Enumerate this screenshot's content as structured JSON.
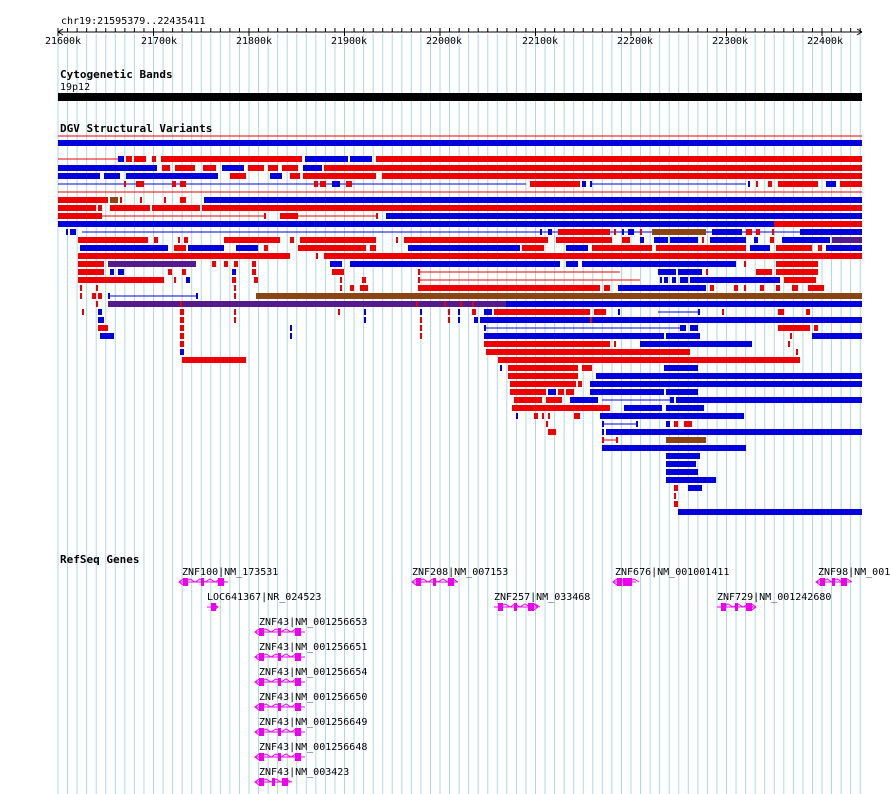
{
  "ruler": {
    "label": "chr19:21595379..22435411",
    "ticks": [
      "21600k",
      "21700k",
      "21800k",
      "21900k",
      "22000k",
      "22100k",
      "22200k",
      "22300k",
      "22400k"
    ]
  },
  "tracks": {
    "cytoband": {
      "title": "Cytogenetic Bands",
      "band": "19p12"
    },
    "dgv": {
      "title": "DGV Structural Variants"
    },
    "refseq": {
      "title": "RefSeq Genes"
    }
  },
  "genes": [
    {
      "label": "ZNF100|NM_173531"
    },
    {
      "label": "LOC641367|NR_024523"
    },
    {
      "label": "ZNF43|NM_001256653"
    },
    {
      "label": "ZNF43|NM_001256651"
    },
    {
      "label": "ZNF43|NM_001256654"
    },
    {
      "label": "ZNF43|NM_001256650"
    },
    {
      "label": "ZNF43|NM_001256649"
    },
    {
      "label": "ZNF43|NM_001256648"
    },
    {
      "label": "ZNF43|NM_003423"
    },
    {
      "label": "ZNF208|NM_007153"
    },
    {
      "label": "ZNF257|NM_033468"
    },
    {
      "label": "ZNF676|NM_001001411"
    },
    {
      "label": "ZNF729|NM_001242680"
    },
    {
      "label": "ZNF98|NM_001"
    }
  ],
  "colors": {
    "gain": "#ee0000",
    "loss": "#0000dd",
    "both": "#8b4513",
    "complex": "#551a8b",
    "gene": "#ee00ee",
    "grid": "#add8e6"
  }
}
